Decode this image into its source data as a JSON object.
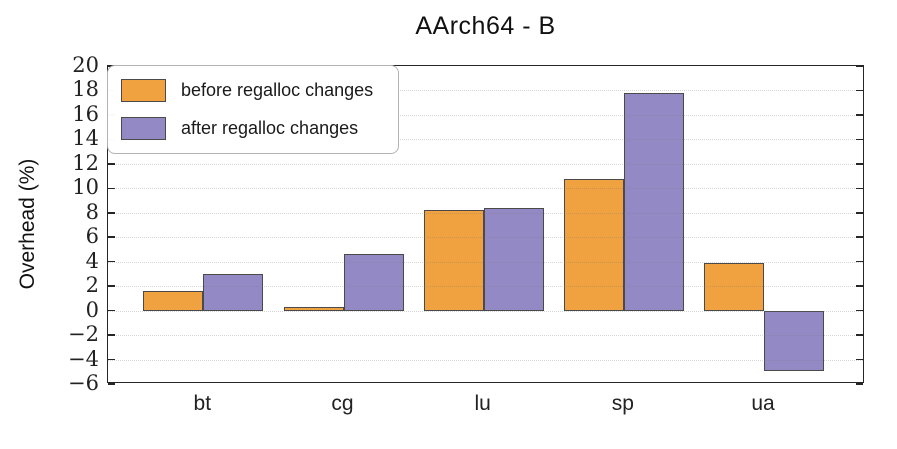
{
  "chart_data": {
    "type": "bar",
    "title": "AArch64 - B",
    "xlabel": "",
    "ylabel": "Overhead (%)",
    "categories": [
      "bt",
      "cg",
      "lu",
      "sp",
      "ua"
    ],
    "series": [
      {
        "name": "before regalloc changes",
        "color": "#F0A241",
        "values": [
          1.6,
          0.3,
          8.2,
          10.8,
          3.9
        ]
      },
      {
        "name": "after regalloc changes",
        "color": "#9389C4",
        "values": [
          3.0,
          4.6,
          8.4,
          17.8,
          -4.9
        ]
      }
    ],
    "ylim": [
      -6,
      20
    ],
    "yticks": [
      20,
      18,
      16,
      14,
      12,
      10,
      8,
      6,
      4,
      2,
      0,
      -2,
      -4,
      -6
    ],
    "grid": true,
    "gridline_style": "dotted",
    "legend_position": "upper-left",
    "bar_edge_color": "#4a4a4a",
    "spine_color": "#262626",
    "grid_color": "#dcdcdc"
  }
}
